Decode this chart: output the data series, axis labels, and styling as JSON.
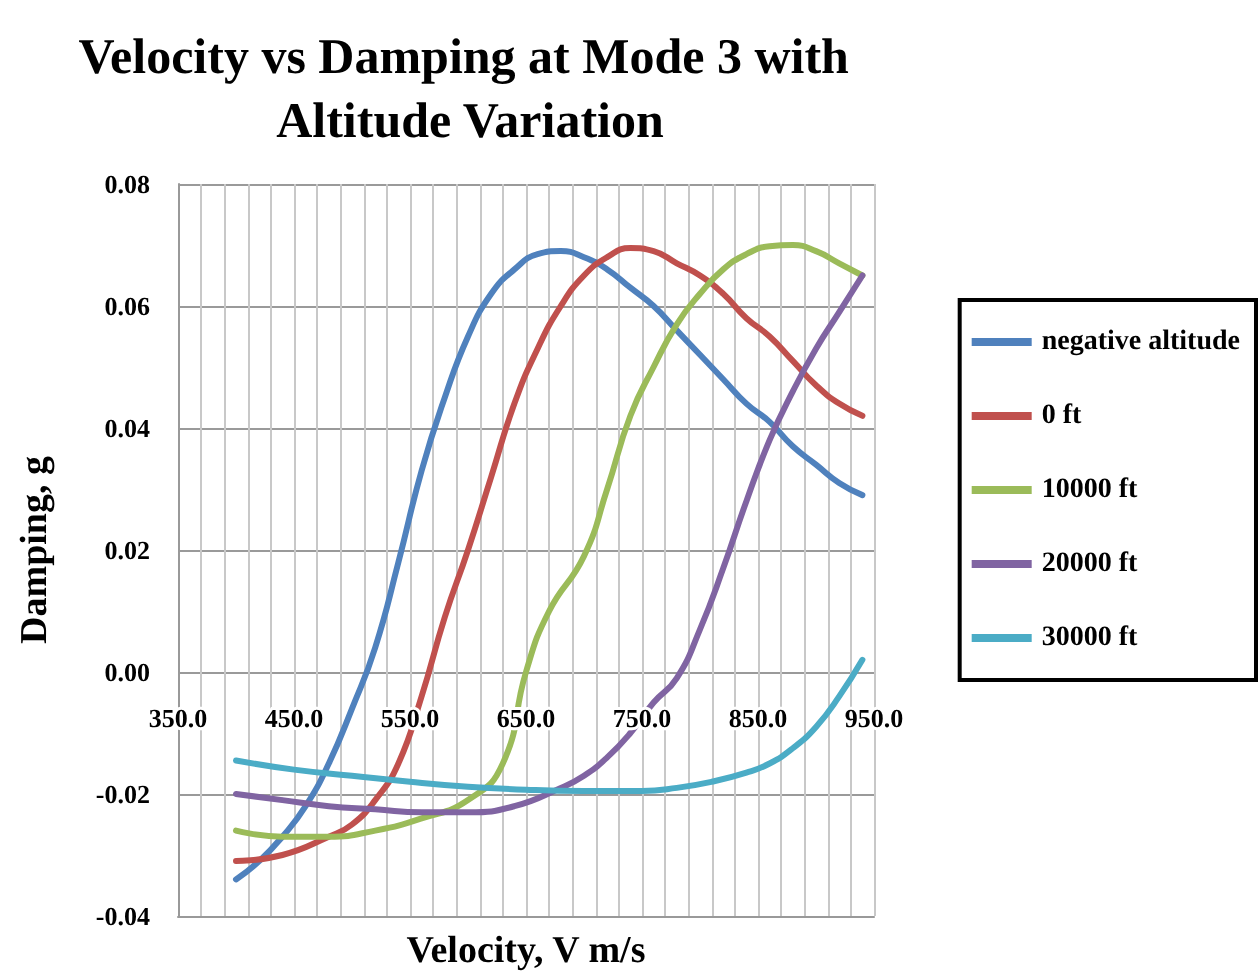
{
  "chart_data": {
    "type": "line",
    "title": "Velocity vs Damping at Mode 3 with Altitude Variation",
    "xlabel": "Velocity, V m/s",
    "ylabel": "Damping, g",
    "xlim": [
      350,
      950
    ],
    "xticks": [
      {
        "value": 350,
        "label": "350.0"
      },
      {
        "value": 370,
        "label": null
      },
      {
        "value": 390,
        "label": null
      },
      {
        "value": 410,
        "label": null
      },
      {
        "value": 430,
        "label": null
      },
      {
        "value": 450,
        "label": "450.0"
      },
      {
        "value": 470,
        "label": null
      },
      {
        "value": 490,
        "label": null
      },
      {
        "value": 510,
        "label": null
      },
      {
        "value": 530,
        "label": null
      },
      {
        "value": 550,
        "label": "550.0"
      },
      {
        "value": 570,
        "label": null
      },
      {
        "value": 590,
        "label": null
      },
      {
        "value": 610,
        "label": null
      },
      {
        "value": 630,
        "label": null
      },
      {
        "value": 650,
        "label": "650.0"
      },
      {
        "value": 670,
        "label": null
      },
      {
        "value": 690,
        "label": null
      },
      {
        "value": 710,
        "label": null
      },
      {
        "value": 730,
        "label": null
      },
      {
        "value": 750,
        "label": "750.0"
      },
      {
        "value": 770,
        "label": null
      },
      {
        "value": 790,
        "label": null
      },
      {
        "value": 810,
        "label": null
      },
      {
        "value": 830,
        "label": null
      },
      {
        "value": 850,
        "label": "850.0"
      },
      {
        "value": 870,
        "label": null
      },
      {
        "value": 890,
        "label": null
      },
      {
        "value": 910,
        "label": null
      },
      {
        "value": 930,
        "label": null
      },
      {
        "value": 950,
        "label": "950.0"
      }
    ],
    "ylim": [
      -0.04,
      0.08
    ],
    "yticks": [
      {
        "value": -0.04,
        "label": "-0.04"
      },
      {
        "value": -0.02,
        "label": "-0.02"
      },
      {
        "value": 0,
        "label": "0.00"
      },
      {
        "value": 0.02,
        "label": "0.02"
      },
      {
        "value": 0.04,
        "label": "0.04"
      },
      {
        "value": 0.06,
        "label": "0.06"
      },
      {
        "value": 0.08,
        "label": "0.08"
      }
    ],
    "grid": true,
    "legend": "right",
    "marker": "none",
    "line_style": "solid",
    "series": [
      {
        "name": "negative altitude",
        "color": "#4f81bd",
        "x": [
          400,
          420,
          440,
          460,
          480,
          500,
          520,
          540,
          560,
          580,
          600,
          620,
          640,
          660,
          680,
          700,
          720,
          740,
          760,
          780,
          800,
          820,
          840,
          860,
          880,
          900,
          920,
          940
        ],
        "values": [
          -0.034,
          -0.031,
          -0.027,
          -0.022,
          -0.015,
          -0.006,
          0.004,
          0.018,
          0.033,
          0.045,
          0.055,
          0.062,
          0.066,
          0.0685,
          0.069,
          0.068,
          0.066,
          0.063,
          0.06,
          0.056,
          0.052,
          0.048,
          0.044,
          0.041,
          0.037,
          0.034,
          0.031,
          0.029
        ]
      },
      {
        "name": "0 ft",
        "color": "#c0504d",
        "x": [
          400,
          440,
          480,
          500,
          520,
          540,
          560,
          580,
          600,
          620,
          640,
          660,
          680,
          700,
          720,
          740,
          760,
          780,
          800,
          820,
          840,
          860,
          880,
          900,
          920,
          940
        ],
        "values": [
          -0.031,
          -0.03,
          -0.027,
          -0.025,
          -0.021,
          -0.015,
          -0.004,
          0.009,
          0.02,
          0.032,
          0.044,
          0.053,
          0.06,
          0.065,
          0.068,
          0.0695,
          0.069,
          0.067,
          0.065,
          0.062,
          0.058,
          0.055,
          0.051,
          0.047,
          0.044,
          0.042
        ]
      },
      {
        "name": "10000 ft",
        "color": "#9bbb59",
        "x": [
          400,
          440,
          480,
          520,
          560,
          600,
          630,
          650,
          670,
          700,
          720,
          740,
          760,
          780,
          800,
          820,
          840,
          860,
          880,
          900,
          920,
          940
        ],
        "values": [
          -0.026,
          -0.027,
          -0.027,
          -0.026,
          -0.024,
          -0.021,
          -0.015,
          0.0,
          0.01,
          0.019,
          0.03,
          0.042,
          0.05,
          0.057,
          0.062,
          0.066,
          0.0685,
          0.0698,
          0.07,
          0.069,
          0.067,
          0.065
        ]
      },
      {
        "name": "20000 ft",
        "color": "#8064a2",
        "x": [
          400,
          440,
          480,
          520,
          560,
          600,
          640,
          680,
          700,
          720,
          740,
          760,
          780,
          800,
          820,
          840,
          860,
          880,
          900,
          920,
          940
        ],
        "values": [
          -0.02,
          -0.021,
          -0.022,
          -0.0225,
          -0.023,
          -0.023,
          -0.022,
          -0.019,
          -0.017,
          -0.014,
          -0.01,
          -0.005,
          -0.001,
          0.007,
          0.017,
          0.028,
          0.038,
          0.046,
          0.053,
          0.059,
          0.065
        ]
      },
      {
        "name": "30000 ft",
        "color": "#4bacc6",
        "x": [
          400,
          450,
          500,
          550,
          600,
          650,
          700,
          750,
          780,
          810,
          840,
          860,
          880,
          900,
          920,
          940
        ],
        "values": [
          -0.0145,
          -0.016,
          -0.017,
          -0.018,
          -0.0188,
          -0.0193,
          -0.0195,
          -0.0195,
          -0.019,
          -0.018,
          -0.0165,
          -0.015,
          -0.0125,
          -0.009,
          -0.004,
          0.002
        ]
      }
    ]
  }
}
